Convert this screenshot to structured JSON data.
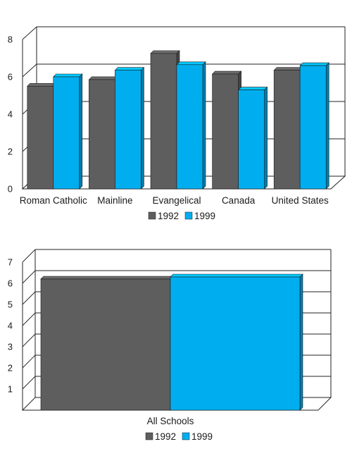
{
  "chart_data": [
    {
      "type": "bar",
      "categories": [
        "Roman Catholic",
        "Mainline",
        "Evangelical",
        "Canada",
        "United States"
      ],
      "series": [
        {
          "name": "1992",
          "values": [
            5.5,
            5.85,
            7.25,
            6.15,
            6.35
          ]
        },
        {
          "name": "1999",
          "values": [
            6.0,
            6.35,
            6.65,
            5.3,
            6.6
          ]
        }
      ],
      "ylim": [
        0,
        8
      ],
      "yticks": [
        "0",
        "2",
        "4",
        "6",
        "8"
      ],
      "grid": true,
      "legend_position": "bottom"
    },
    {
      "type": "bar",
      "categories": [
        "All Schools"
      ],
      "series": [
        {
          "name": "1992",
          "values": [
            6.2
          ]
        },
        {
          "name": "1999",
          "values": [
            6.3
          ]
        }
      ],
      "ylim": [
        0,
        7
      ],
      "yticks": [
        "1",
        "2",
        "3",
        "4",
        "5",
        "6",
        "7"
      ],
      "grid": true,
      "legend_position": "bottom"
    }
  ],
  "colors": {
    "series_1992": "#5e5e5e",
    "series_1999": "#00aeef",
    "gridline": "#222222",
    "axis_text": "#1a1a1a"
  }
}
